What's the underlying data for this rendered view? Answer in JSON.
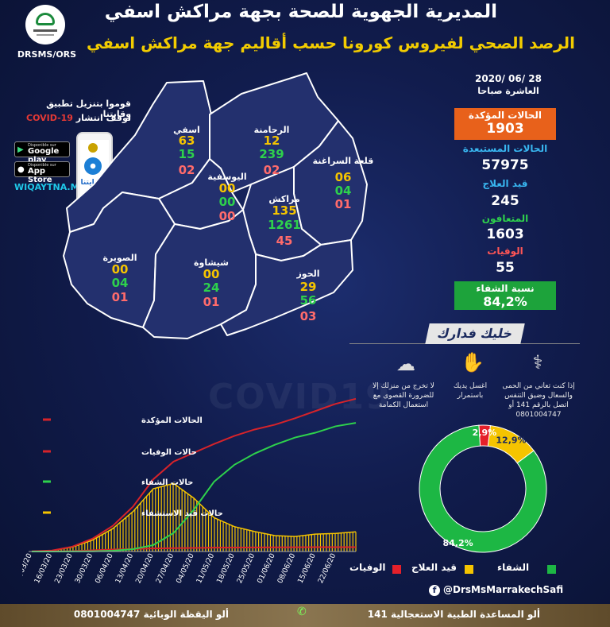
{
  "header": {
    "title": "المديرية الجهوية للصحة بجهة مراكش اسفي",
    "subtitle": "الرصد الصحي لفيروس كورونا حسب أقاليم جهة مراكش اسفي",
    "logo_caption": "DRSMS/ORS"
  },
  "promo": {
    "line1": "قوموا بتنزيل تطبيق وقايتنا",
    "line2_prefix": "لوقف انتشار ",
    "line2_highlight": "COVID-19",
    "google_small": "Disponible sur",
    "google_big": "Google play",
    "apple_small": "Disponible sur",
    "apple_big": "App Store",
    "website": "WIQAYTNA.MA",
    "app_name": "وقايتنا"
  },
  "regions": [
    {
      "name": "اسفي",
      "confirmed": "63",
      "recovered": "15",
      "deaths": "02"
    },
    {
      "name": "الرحامنة",
      "confirmed": "12",
      "recovered": "239",
      "deaths": "02"
    },
    {
      "name": "قلعة السراغنة",
      "confirmed": "06",
      "recovered": "04",
      "deaths": "01"
    },
    {
      "name": "اليوسفية",
      "confirmed": "00",
      "recovered": "00",
      "deaths": "00"
    },
    {
      "name": "مراكش",
      "confirmed": "135",
      "recovered": "1261",
      "deaths": "45"
    },
    {
      "name": "الصويرة",
      "confirmed": "00",
      "recovered": "04",
      "deaths": "01"
    },
    {
      "name": "شيشاوة",
      "confirmed": "00",
      "recovered": "24",
      "deaths": "01"
    },
    {
      "name": "الحوز",
      "confirmed": "29",
      "recovered": "56",
      "deaths": "03"
    }
  ],
  "stats": {
    "date": "28 /06 /2020",
    "date_sub": "العاشرة صباحا",
    "confirmed_label": "الحالات المؤكدة",
    "confirmed_value": "1903",
    "excluded_label": "الحالات المستبعدة",
    "excluded_value": "57975",
    "treatment_label": "قيد العلاج",
    "treatment_value": "245",
    "recovered_label": "المتعافون",
    "recovered_value": "1603",
    "deaths_label": "الوفيات",
    "deaths_value": "55",
    "recovery_rate_label": "نسبة الشفاء",
    "recovery_rate_value": "84,2%"
  },
  "awareness": {
    "title": "خليك فدارك",
    "tip1": "إذا كنت تعاني من الحمى والسعال وضيق التنفس اتصل بالرقم 141 أو 0801004747",
    "tip2": "اغسل يديك باستمرار",
    "tip3": "لا تخرج من منزلك إلا للضرورة القصوى مع استعمال الكمامة"
  },
  "watermark": "COVID19",
  "chart_data": [
    {
      "type": "line",
      "x": [
        "09/03/20",
        "16/03/20",
        "23/03/20",
        "30/03/20",
        "06/04/20",
        "13/04/20",
        "20/04/20",
        "27/04/20",
        "04/05/20",
        "11/05/20",
        "18/05/20",
        "25/05/20",
        "01/06/20",
        "08/06/20",
        "15/06/20",
        "22/06/20",
        "28/06/20"
      ],
      "series": [
        {
          "name": "الحالات المؤكدة",
          "color": "#d6232a",
          "values": [
            2,
            12,
            60,
            160,
            320,
            560,
            900,
            1120,
            1230,
            1340,
            1440,
            1520,
            1580,
            1660,
            1750,
            1840,
            1903
          ]
        },
        {
          "name": "حالات الوفيات",
          "color": "#d6232a",
          "values": [
            0,
            1,
            5,
            15,
            25,
            32,
            38,
            42,
            45,
            48,
            50,
            51,
            52,
            53,
            54,
            55,
            55
          ]
        },
        {
          "name": "حالات الشفاء",
          "color": "#2ed14c",
          "values": [
            0,
            0,
            1,
            3,
            10,
            30,
            80,
            230,
            520,
            870,
            1080,
            1220,
            1330,
            1420,
            1480,
            1560,
            1603
          ]
        },
        {
          "name": "حالات قيد الاستشفاء",
          "color": "#f5c400",
          "values": [
            2,
            11,
            54,
            142,
            285,
            498,
            782,
            848,
            665,
            422,
            310,
            249,
            198,
            187,
            216,
            225,
            245
          ]
        }
      ],
      "xlabel": "",
      "ylabel": "",
      "ylim": [
        0,
        2000
      ]
    },
    {
      "type": "pie",
      "categories": [
        "الشفاء",
        "قيد العلاج",
        "الوفيات"
      ],
      "values": [
        84.2,
        12.9,
        2.9
      ],
      "labels": [
        "84,2%",
        "12,9%",
        "2,9%"
      ],
      "colors": [
        "#1db744",
        "#f5c400",
        "#e5202a"
      ]
    }
  ],
  "donut_legend": {
    "recovered": "الشفاء",
    "treatment": "قيد العلاج",
    "deaths": "الوفيات"
  },
  "social": "@DrsMsMarrakechSafi",
  "footer": {
    "left_text": "ألو اليقظة الوبائية  0801004747",
    "right_text": "ألو المساعدة الطبية الاستعجالية   141"
  }
}
